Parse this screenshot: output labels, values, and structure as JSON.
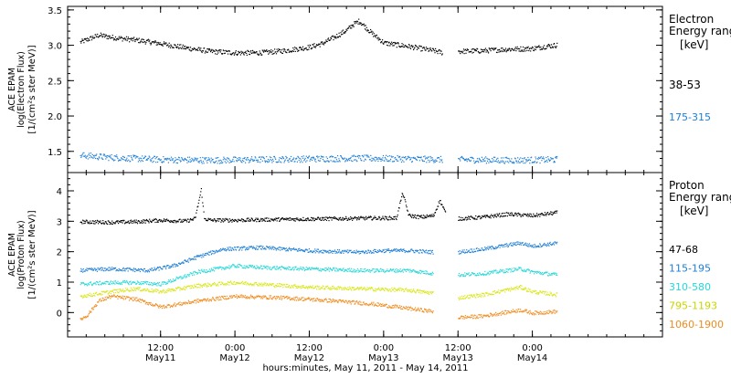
{
  "chart_data": [
    {
      "type": "scatter",
      "panel": "electron",
      "ylabel_lines": [
        "ACE EPAM",
        "log(Electron Flux)",
        "[1/(cm²s ster MeV)]"
      ],
      "legend_title_lines": [
        "Electron",
        "Energy range",
        "[keV]"
      ],
      "ylim": [
        1.2,
        3.55
      ],
      "yticks": [
        1.5,
        2.0,
        2.5,
        3.0,
        3.5
      ],
      "ytick_labels": [
        "1.5",
        "2.0",
        "2.5",
        "3.0",
        "3.5"
      ],
      "series": [
        {
          "name": "38-53",
          "color": "#000000",
          "x": [
            "2011-05-10 23:00",
            "2011-05-11 02:00",
            "2011-05-11 04:00",
            "2011-05-11 08:00",
            "2011-05-11 12:00",
            "2011-05-11 16:00",
            "2011-05-11 20:00",
            "2011-05-12 00:00",
            "2011-05-12 04:00",
            "2011-05-12 08:00",
            "2011-05-12 12:00",
            "2011-05-12 14:00",
            "2011-05-12 16:00",
            "2011-05-12 18:00",
            "2011-05-12 19:00",
            "2011-05-12 20:00",
            "2011-05-12 22:00",
            "2011-05-13 00:00",
            "2011-05-13 04:00",
            "2011-05-13 08:00",
            "2011-05-13 09:30",
            "2011-05-13 11:00",
            "2011-05-13 12:00",
            "2011-05-13 16:00",
            "2011-05-13 20:00",
            "2011-05-14 00:00",
            "2011-05-14 02:00",
            "2011-05-14 04:00"
          ],
          "y": [
            3.05,
            3.15,
            3.12,
            3.08,
            3.03,
            2.97,
            2.92,
            2.9,
            2.9,
            2.93,
            2.98,
            3.03,
            3.12,
            3.22,
            3.3,
            3.35,
            3.18,
            3.04,
            2.99,
            2.93,
            2.9,
            null,
            2.92,
            2.93,
            2.95,
            2.96,
            2.99,
            3.01
          ]
        },
        {
          "name": "175-315",
          "color": "#1e7fd6",
          "x": [
            "2011-05-10 23:00",
            "2011-05-11 04:00",
            "2011-05-11 12:00",
            "2011-05-11 20:00",
            "2011-05-12 04:00",
            "2011-05-12 12:00",
            "2011-05-12 20:00",
            "2011-05-13 04:00",
            "2011-05-13 09:30",
            "2011-05-13 11:00",
            "2011-05-13 12:00",
            "2011-05-13 20:00",
            "2011-05-14 04:00"
          ],
          "y": [
            1.45,
            1.42,
            1.39,
            1.38,
            1.39,
            1.4,
            1.41,
            1.4,
            1.39,
            null,
            1.39,
            1.38,
            1.39
          ]
        }
      ]
    },
    {
      "type": "scatter",
      "panel": "proton",
      "ylabel_lines": [
        "ACE EPAM",
        "log(Proton Flux)",
        "[1/(cm²s ster MeV)]"
      ],
      "legend_title_lines": [
        "Proton",
        "Energy range",
        "[keV]"
      ],
      "ylim": [
        -0.8,
        4.6
      ],
      "yticks": [
        0,
        1,
        2,
        3,
        4
      ],
      "ytick_labels": [
        "0",
        "1",
        "2",
        "3",
        "4"
      ],
      "series": [
        {
          "name": "47-68",
          "color": "#000000",
          "x": [
            "2011-05-10 23:00",
            "2011-05-11 04:00",
            "2011-05-11 08:00",
            "2011-05-11 12:00",
            "2011-05-11 16:00",
            "2011-05-11 17:30",
            "2011-05-11 18:30",
            "2011-05-11 19:00",
            "2011-05-11 20:00",
            "2011-05-12 00:00",
            "2011-05-12 08:00",
            "2011-05-12 16:00",
            "2011-05-12 22:00",
            "2011-05-13 02:00",
            "2011-05-13 03:00",
            "2011-05-13 04:00",
            "2011-05-13 06:00",
            "2011-05-13 08:00",
            "2011-05-13 09:00",
            "2011-05-13 10:00",
            "2011-05-13 11:00",
            "2011-05-13 12:00",
            "2011-05-13 16:00",
            "2011-05-13 20:00",
            "2011-05-14 00:00",
            "2011-05-14 04:00"
          ],
          "y": [
            3.0,
            2.98,
            3.0,
            3.05,
            3.02,
            3.1,
            4.05,
            3.1,
            3.05,
            3.05,
            3.08,
            3.1,
            3.12,
            3.12,
            3.95,
            3.2,
            3.15,
            3.2,
            3.7,
            3.25,
            null,
            3.1,
            3.15,
            3.25,
            3.2,
            3.3
          ]
        },
        {
          "name": "115-195",
          "color": "#1e7fd6",
          "x": [
            "2011-05-10 23:00",
            "2011-05-11 04:00",
            "2011-05-11 10:00",
            "2011-05-11 14:00",
            "2011-05-11 18:00",
            "2011-05-11 22:00",
            "2011-05-12 04:00",
            "2011-05-12 12:00",
            "2011-05-12 20:00",
            "2011-05-13 00:00",
            "2011-05-13 04:00",
            "2011-05-13 08:00",
            "2011-05-13 11:00",
            "2011-05-13 12:00",
            "2011-05-13 16:00",
            "2011-05-13 22:00",
            "2011-05-14 00:00",
            "2011-05-14 04:00"
          ],
          "y": [
            1.4,
            1.45,
            1.4,
            1.55,
            1.85,
            2.1,
            2.15,
            2.05,
            2.0,
            2.05,
            2.05,
            2.0,
            null,
            2.0,
            2.1,
            2.3,
            2.2,
            2.3
          ]
        },
        {
          "name": "310-580",
          "color": "#28d7d7",
          "x": [
            "2011-05-10 23:00",
            "2011-05-11 04:00",
            "2011-05-11 08:00",
            "2011-05-11 12:00",
            "2011-05-11 18:00",
            "2011-05-12 00:00",
            "2011-05-12 04:00",
            "2011-05-12 12:00",
            "2011-05-12 20:00",
            "2011-05-13 04:00",
            "2011-05-13 08:00",
            "2011-05-13 11:00",
            "2011-05-13 12:00",
            "2011-05-13 16:00",
            "2011-05-13 22:00",
            "2011-05-14 00:00",
            "2011-05-14 04:00"
          ],
          "y": [
            0.95,
            1.0,
            1.0,
            0.95,
            1.35,
            1.55,
            1.5,
            1.45,
            1.4,
            1.4,
            1.3,
            null,
            1.25,
            1.3,
            1.45,
            1.35,
            1.25
          ]
        },
        {
          "name": "795-1193",
          "color": "#d9e61a",
          "x": [
            "2011-05-10 23:00",
            "2011-05-11 04:00",
            "2011-05-11 08:00",
            "2011-05-11 12:00",
            "2011-05-11 18:00",
            "2011-05-12 00:00",
            "2011-05-12 04:00",
            "2011-05-12 12:00",
            "2011-05-12 20:00",
            "2011-05-13 04:00",
            "2011-05-13 08:00",
            "2011-05-13 11:00",
            "2011-05-13 12:00",
            "2011-05-13 16:00",
            "2011-05-13 22:00",
            "2011-05-14 00:00",
            "2011-05-14 04:00"
          ],
          "y": [
            0.55,
            0.7,
            0.8,
            0.7,
            0.9,
            1.0,
            0.95,
            0.85,
            0.8,
            0.75,
            0.65,
            null,
            0.5,
            0.6,
            0.85,
            0.7,
            0.6
          ]
        },
        {
          "name": "1060-1900",
          "color": "#f08c1e",
          "x": [
            "2011-05-10 23:00",
            "2011-05-11 00:00",
            "2011-05-11 02:00",
            "2011-05-11 04:00",
            "2011-05-11 08:00",
            "2011-05-11 12:00",
            "2011-05-11 18:00",
            "2011-05-12 00:00",
            "2011-05-12 08:00",
            "2011-05-12 16:00",
            "2011-05-12 22:00",
            "2011-05-13 04:00",
            "2011-05-13 08:00",
            "2011-05-13 11:00",
            "2011-05-13 12:00",
            "2011-05-13 16:00",
            "2011-05-13 22:00",
            "2011-05-14 00:00",
            "2011-05-14 04:00"
          ],
          "y": [
            -0.2,
            -0.1,
            0.4,
            0.55,
            0.45,
            0.2,
            0.4,
            0.55,
            0.5,
            0.4,
            0.3,
            0.15,
            0.05,
            null,
            -0.15,
            -0.1,
            0.1,
            0.0,
            0.05
          ]
        }
      ]
    }
  ],
  "xaxis": {
    "range": [
      "2011-05-10 21:00",
      "2011-05-14 21:00"
    ],
    "tick_labels": [
      {
        "time": "12:00",
        "day": "May11"
      },
      {
        "time": "0:00",
        "day": "May12"
      },
      {
        "time": "12:00",
        "day": "May12"
      },
      {
        "time": "0:00",
        "day": "May13"
      },
      {
        "time": "12:00",
        "day": "May13"
      },
      {
        "time": "0:00",
        "day": "May14"
      }
    ],
    "tick_times": [
      "2011-05-11 12:00",
      "2011-05-12 00:00",
      "2011-05-12 12:00",
      "2011-05-13 00:00",
      "2011-05-13 12:00",
      "2011-05-14 00:00"
    ],
    "title": "hours:minutes, May 11, 2011 - May 14, 2011"
  }
}
